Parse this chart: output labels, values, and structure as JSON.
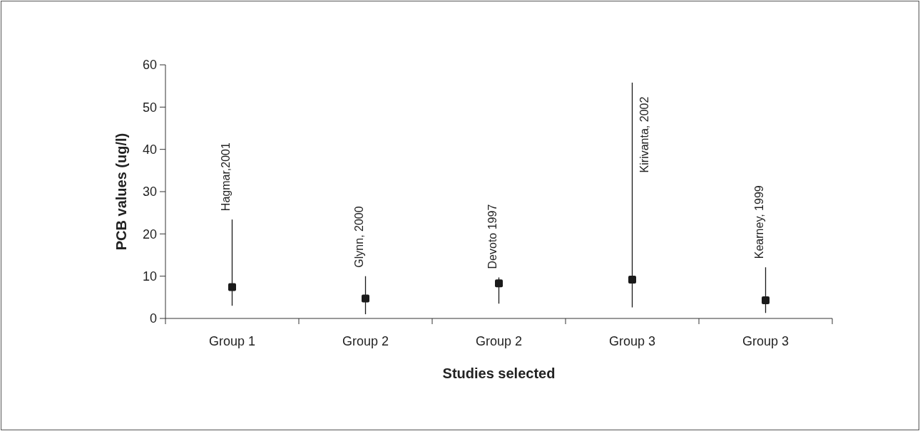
{
  "chart_data": {
    "type": "scatter",
    "xlabel": "Studies selected",
    "ylabel": "PCB values (ug/l)",
    "categories": [
      "Group 1",
      "Group 2",
      "Group 2",
      "Group 3",
      "Group 3"
    ],
    "values": [
      7.4,
      4.7,
      8.3,
      9.2,
      4.3
    ],
    "errors": [
      [
        3.0,
        23.4
      ],
      [
        1.0,
        10.0
      ],
      [
        3.5,
        9.7
      ],
      [
        2.6,
        55.8
      ],
      [
        1.3,
        12.1
      ]
    ],
    "color": "#1a1a1a",
    "marker": "square",
    "ylim": [
      0,
      60
    ],
    "yticks": [
      0,
      10,
      20,
      30,
      40,
      50,
      60
    ],
    "grid": false,
    "annotations": [
      "Hagmar,2001",
      "Glynn, 2000",
      "Devoto 1997",
      "Kirivanta, 2002",
      "Kearney, 1999"
    ]
  }
}
